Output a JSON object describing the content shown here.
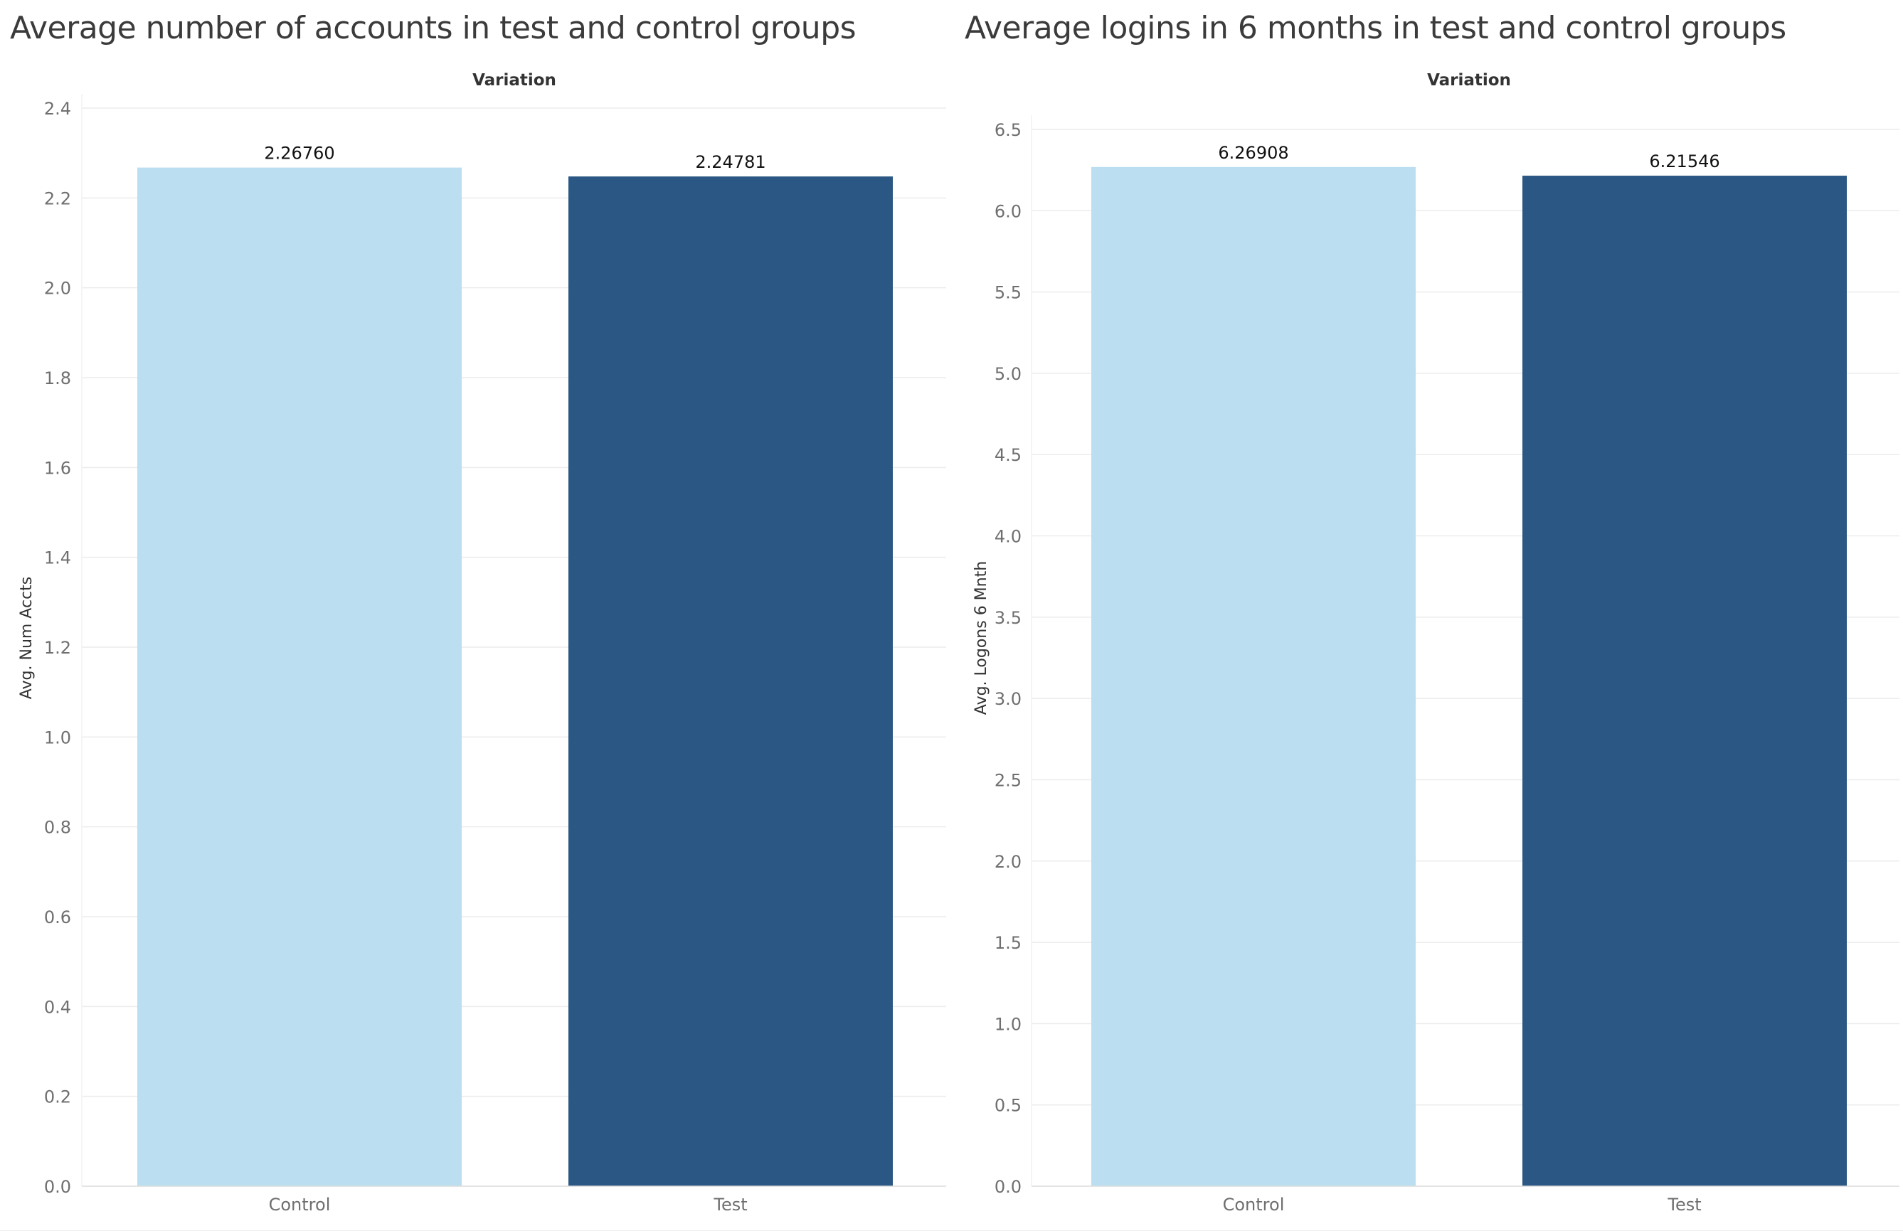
{
  "chart_data": [
    {
      "type": "bar",
      "title": "Average number of accounts in test and control groups",
      "column_header": "Variation",
      "ylabel": "Avg. Num Accts",
      "categories": [
        "Control",
        "Test"
      ],
      "values": [
        2.2676,
        2.24781
      ],
      "value_labels": [
        "2.26760",
        "2.24781"
      ],
      "bar_colors": [
        "#bbdef0",
        "#2b5784"
      ],
      "ylim": [
        0,
        2.4
      ],
      "yticks": [
        0,
        0.2,
        0.4,
        0.6,
        0.8,
        1.0,
        1.2,
        1.4,
        1.6,
        1.8,
        2.0,
        2.2,
        2.4
      ],
      "ytick_labels": [
        "0.0",
        "0.2",
        "0.4",
        "0.6",
        "0.8",
        "1.0",
        "1.2",
        "1.4",
        "1.6",
        "1.8",
        "2.0",
        "2.2",
        "2.4"
      ],
      "grid": true,
      "legend": "none"
    },
    {
      "type": "bar",
      "title": "Average logins in 6 months in test and control groups",
      "column_header": "Variation",
      "ylabel": "Avg. Logons 6 Mnth",
      "categories": [
        "Control",
        "Test"
      ],
      "values": [
        6.26908,
        6.21546
      ],
      "value_labels": [
        "6.26908",
        "6.21546"
      ],
      "bar_colors": [
        "#bbdef0",
        "#2b5784"
      ],
      "ylim": [
        0,
        6.5
      ],
      "yticks": [
        0,
        0.5,
        1.0,
        1.5,
        2.0,
        2.5,
        3.0,
        3.5,
        4.0,
        4.5,
        5.0,
        5.5,
        6.0,
        6.5
      ],
      "ytick_labels": [
        "0.0",
        "0.5",
        "1.0",
        "1.5",
        "2.0",
        "2.5",
        "3.0",
        "3.5",
        "4.0",
        "4.5",
        "5.0",
        "5.5",
        "6.0",
        "6.5"
      ],
      "grid": true,
      "legend": "none"
    }
  ]
}
